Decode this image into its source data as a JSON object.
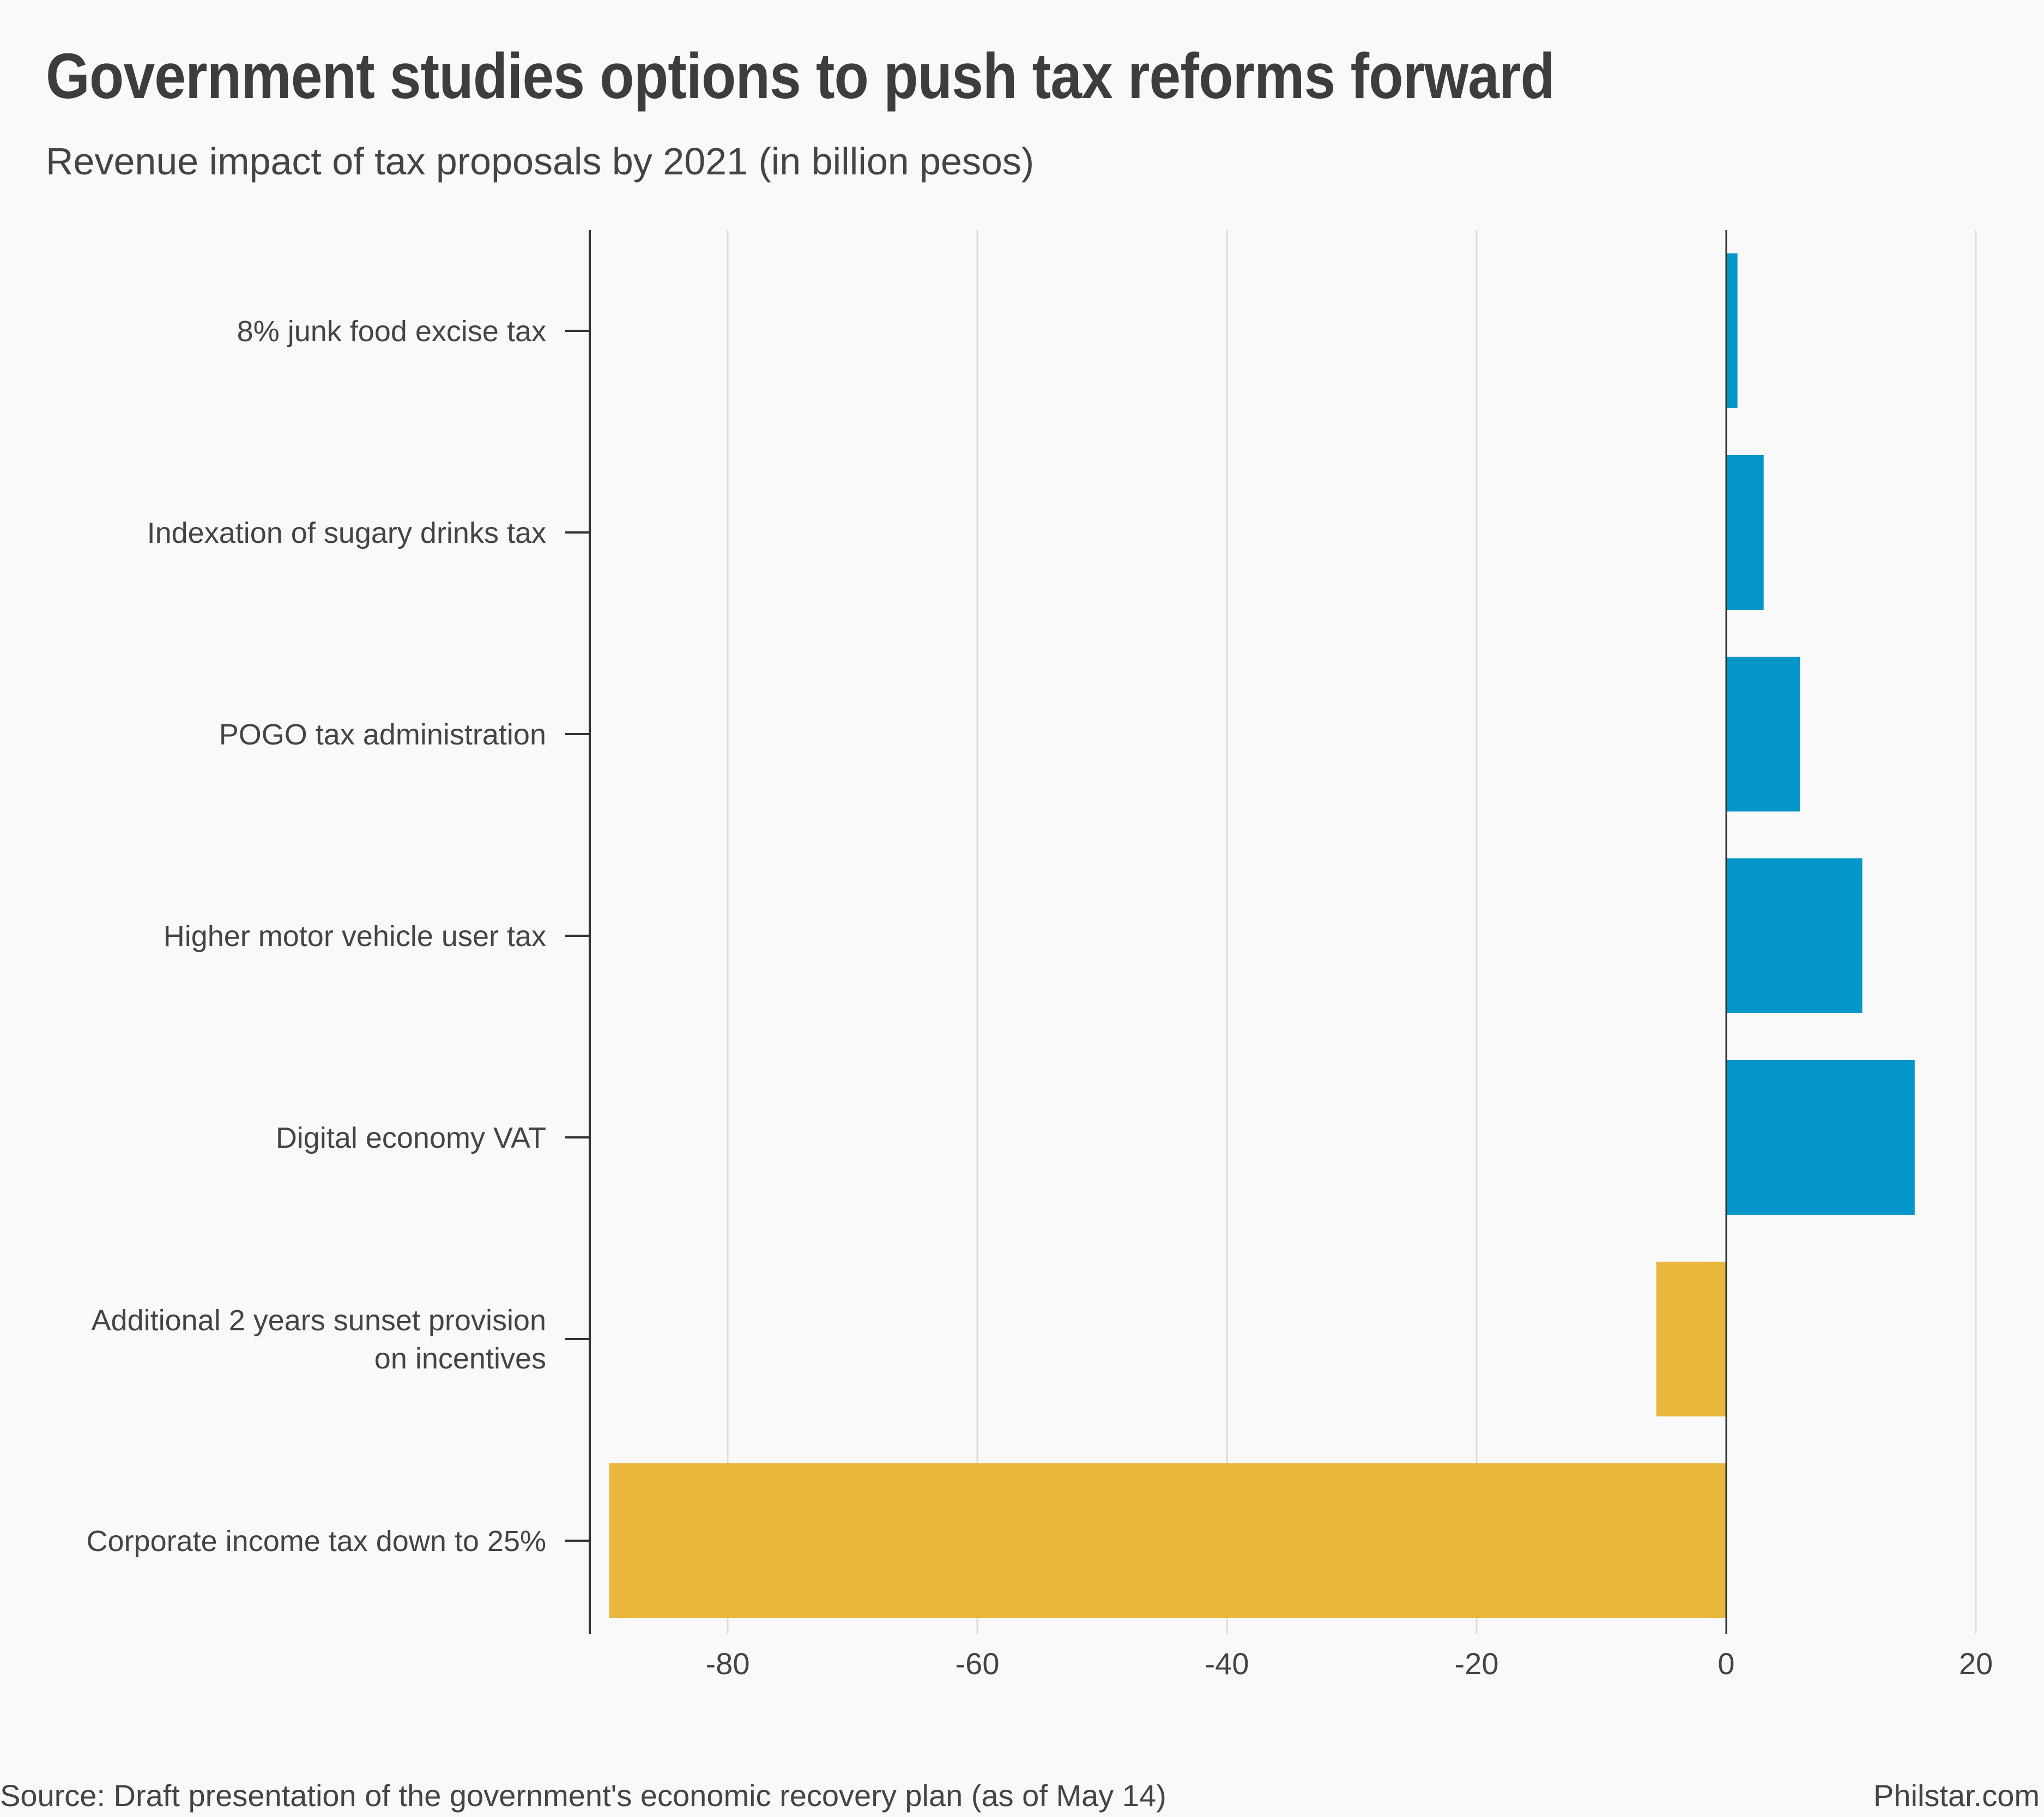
{
  "header": {
    "title": "Government studies options to push tax reforms forward",
    "subtitle": "Revenue impact of tax proposals by 2021 (in billion pesos)"
  },
  "footer": {
    "source": "Source: Draft presentation of the government's economic recovery plan (as of May 14)",
    "credit": "Philstar.com"
  },
  "chart_data": {
    "type": "bar",
    "orientation": "horizontal",
    "title": "Government studies options to push tax reforms forward",
    "subtitle": "Revenue impact of tax proposals by 2021 (in billion pesos)",
    "categories": [
      [
        "8% junk food excise tax"
      ],
      [
        "Indexation of sugary drinks tax"
      ],
      [
        "POGO tax administration"
      ],
      [
        "Higher motor vehicle user tax"
      ],
      [
        "Digital economy VAT"
      ],
      [
        "Additional 2 years sunset provision",
        "on incentives"
      ],
      [
        "Corporate income tax down to 25%"
      ]
    ],
    "values": [
      0.9,
      3.0,
      5.9,
      10.9,
      15.1,
      -5.6,
      -89.5
    ],
    "xlim": [
      -91,
      20
    ],
    "xticks": [
      -80,
      -60,
      -40,
      -20,
      0,
      20
    ],
    "grid": true,
    "colors": {
      "positive": "#0596c9",
      "negative": "#e8b73c",
      "grid": "#dcdcdc",
      "axis": "#333333",
      "text": "#444444"
    }
  }
}
